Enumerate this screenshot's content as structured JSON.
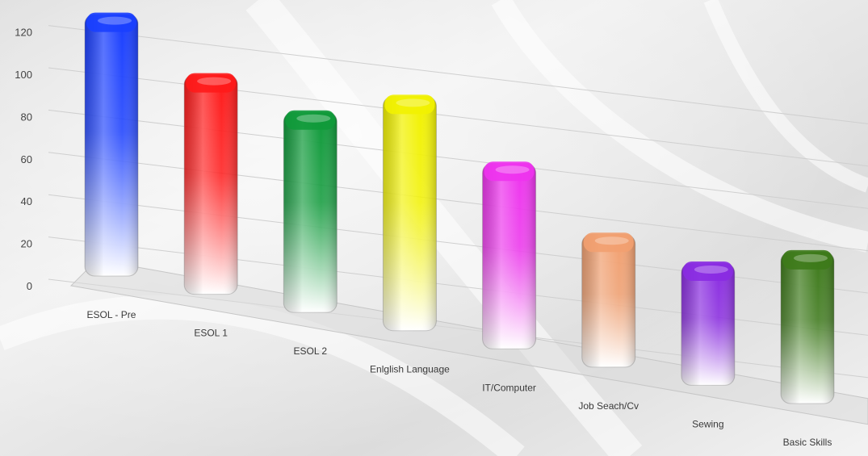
{
  "chart_data": {
    "type": "bar",
    "title": "",
    "xlabel": "",
    "ylabel": "",
    "ylim": [
      0,
      120
    ],
    "yticks": [
      0,
      20,
      40,
      60,
      80,
      100,
      120
    ],
    "categories": [
      "ESOL - Pre",
      "ESOL 1",
      "ESOL 2",
      "Enlglish Language",
      "IT/Computer",
      "Job Seach/Cv",
      "Sewing",
      "Basic Skills"
    ],
    "values": [
      120,
      100,
      91,
      107,
      84,
      59,
      54,
      68
    ],
    "colors": [
      "#1a3fff",
      "#ff1a1a",
      "#0f9a3a",
      "#f2f200",
      "#ee33ee",
      "#f2a070",
      "#8a2be2",
      "#3d7a1a"
    ],
    "grid": true,
    "legend": "none"
  }
}
